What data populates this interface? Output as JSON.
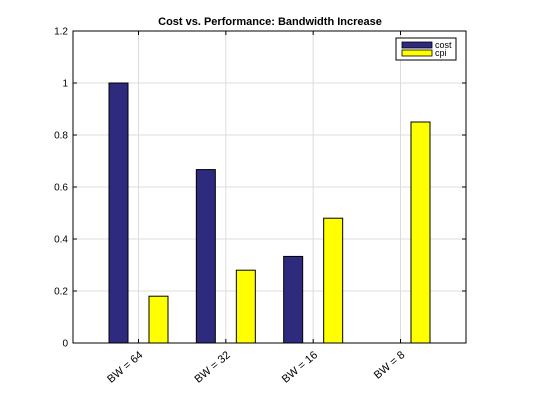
{
  "chart_data": {
    "type": "bar",
    "title": "Cost vs. Performance: Bandwidth Increase",
    "xlabel": "",
    "ylabel": "",
    "categories": [
      "BW = 64",
      "BW = 32",
      "BW = 16",
      "BW = 8"
    ],
    "series": [
      {
        "name": "cost",
        "color": "#2e2a7e",
        "values": [
          1.0,
          0.667,
          0.333,
          0.0
        ]
      },
      {
        "name": "cpi",
        "color": "#ffff00",
        "values": [
          0.18,
          0.28,
          0.48,
          0.85
        ]
      }
    ],
    "ylim": [
      0,
      1.2
    ],
    "yticks": [
      "0",
      "0.2",
      "0.4",
      "0.6",
      "0.8",
      "1",
      "1.2"
    ],
    "grid": true,
    "legend_position": "top-right"
  }
}
